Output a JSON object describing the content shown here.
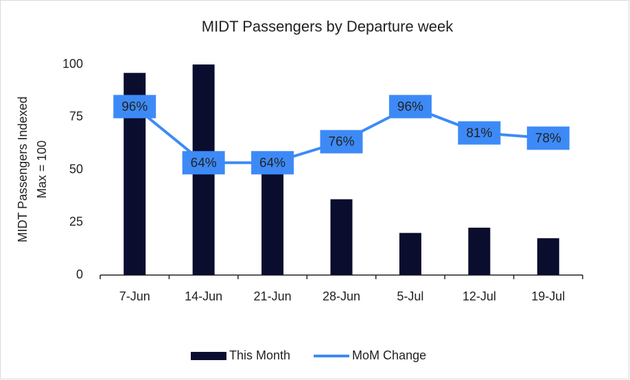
{
  "chart_data": {
    "type": "combo",
    "title": "MIDT Passengers by Departure week",
    "y_label": [
      "MIDT Passengers Indexed",
      "Max = 100"
    ],
    "categories": [
      "7-Jun",
      "14-Jun",
      "21-Jun",
      "28-Jun",
      "5-Jul",
      "12-Jul",
      "19-Jul"
    ],
    "series": [
      {
        "name": "This Month",
        "type": "bar",
        "color": "#0b0d2e",
        "values": [
          96,
          100,
          50,
          36,
          20,
          22.5,
          17.5
        ]
      },
      {
        "name": "MoM Change",
        "type": "line",
        "axis": "y2",
        "color": "#3d8af7",
        "label_color": "#3d8af7",
        "values": [
          96,
          64,
          64,
          76,
          96,
          81,
          78
        ],
        "value_labels": [
          "96%",
          "64%",
          "64%",
          "76%",
          "96%",
          "81%",
          "78%"
        ]
      }
    ],
    "ylim": [
      0,
      100
    ],
    "yticks": [
      0,
      25,
      50,
      75,
      100
    ],
    "y2lim": [
      0,
      120
    ],
    "legend": "bottom"
  }
}
